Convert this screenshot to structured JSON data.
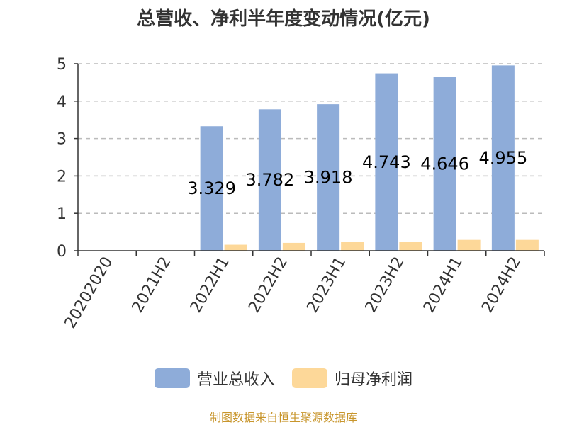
{
  "chart_data": {
    "type": "bar",
    "title": "总营收、净利半年度变动情况(亿元)",
    "categories": [
      "20202020",
      "2021H2",
      "2022H1",
      "2022H2",
      "2023H1",
      "2023H2",
      "2024H1",
      "2024H2"
    ],
    "series": [
      {
        "name": "营业总收入",
        "color": "#8eacd9",
        "values": [
          null,
          null,
          3.329,
          3.782,
          3.918,
          4.743,
          4.646,
          4.955
        ],
        "labels": [
          "",
          "",
          "3.329",
          "3.782",
          "3.918",
          "4.743",
          "4.646",
          "4.955"
        ]
      },
      {
        "name": "归母净利润",
        "color": "#fdd899",
        "values": [
          null,
          null,
          0.16,
          0.21,
          0.24,
          0.24,
          0.29,
          0.29
        ]
      }
    ],
    "ylim": [
      0,
      5
    ],
    "yticks": [
      "0",
      "1",
      "2",
      "3",
      "4",
      "5"
    ],
    "grid": true,
    "legend_position": "bottom"
  },
  "source": "制图数据来自恒生聚源数据库"
}
